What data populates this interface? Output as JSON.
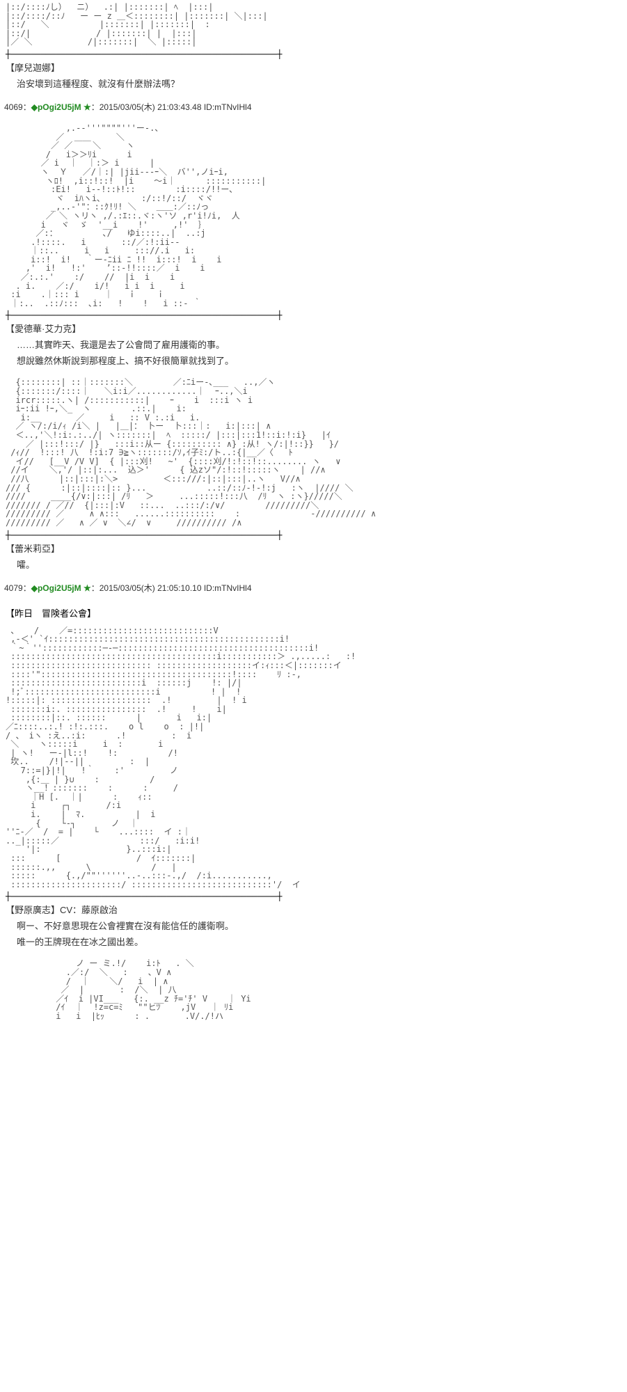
{
  "post1": {
    "ascii": "|::/::::ﾉし）  ニ）  .:| |:::::::| ﾍ  |:::|\n|::/::::/::ﾉ   ー ー z ＿＜::::::::| |:::::::| ＼|:::|\n|::/   ＼          |:::::::| |:::::::|  :\n|::/|             / |:::::::| |  |:::|\n|／ ＼           /|:::::::|  ＼ |:::::|",
    "divider": "┼─────────────────────────────────────────────────────┼",
    "characterName": "【摩兒迦娜】",
    "dialogue": "治安壞到這種程度、就沒有什麼辦法嗎？"
  },
  "post2": {
    "header": {
      "num": "4069",
      "sep": "：",
      "trip": "◆pOgi2U5jM ★",
      "meta": "：2015/03/05(木) 21:03:43.48 ID:mTNvIHl4"
    },
    "ascii": "            ,.-‐'''\"\"\"\"'''ー-.、\n          ／  ＿＿     ＼\n         ／ ／    ＼     ヽ\n        /   i＞＞ﾘi      i\n       ／ i  ｜  ｜:＞ i      |\n       ヽ  Ｙ   ／/｜:| |jii---ｰ＼  バ'',ノiｰi,\n        ヽﾛ!  ,i::!::!  |i    ～i｜      :::::::::::|\n         :Ei!   i--!::ﾄ!::        :i::::/!!ー､\n          ヾ  iﾊヽi､        :/::!/::/  ヾヾ\n         _,..-'\"：::ｸ!ﾘ! ＼    ＿＿:／::ﾉっ\n        ／ ＼ ヽリヽ ,/.:ｴ::.ヾ:ヽ'ソ ,r'i!ﾉi,  人\n       i   ヾ  ゞ  '__i    !'     ,!'  ｝\n      ／:：         ､/   ゆi::::..|  ..:j\n     .!::::.   i       ::/／:!:ii--         \n     ｜::..     i   i     ::://.i   i:\n     i::!  i!   ｀ー-ﾆii ﾆ !!  i:::!  i    i\n    ,'  i!   !:'    ’::‐!!::::／  i    i\n   ／:.:.'    :/    //  |i  i    i\n  . i.    ／:/    i/!   i i  i     i\n :i    .｜::: i     ｜   ｉ    ｉ\n ｜:..  .::ﾉ:::  ､i:   !    !   i ::- ｀",
    "divider": "┼─────────────────────────────────────────────────────┼",
    "characterName": "【愛德華·艾力克】",
    "dialogue1": "……其實昨天、我還是去了公會問了雇用護衛的事。",
    "dialogue2": "想說雖然休斯說到那程度上、搞不好很簡單就找到了。"
  },
  "post3": {
    "ascii": "  {::::::::| ::｜:::::::＼        ／:ﾆiー-､___   ..,／ヽ\n  {:::::::/::::｜   ＼i:i／............｜  ｰ..,＼i\n  ircr:::::.ヽ| /:::::::::::|    ｰ    i  :::i ヽ i\n  iｰ:ii !ｰ,＼_  ヽ        .::.|    i:\n   i:__       ／     i   :: V :.:i   i.\n  ／ ヽ/:/i/ｨ /i＼ |   |＿|： 卜ー  卜:::｜:   i:|:::| ∧\n  ＜..,'＼!:i:.:../| ヽ:::::::|  ﾍ  :::::/ |:::|:::1!::i:!:i}   |ｲ\n    ／ |:::!:::/ |}   :::i::从ー {:::::::::: ∧} :从! ヽ/:|!::}}   }/\n /ｨ//  !:::! 八  !:i:7 ∋≧ヽ:::::::/ｿ,ｲ子ﾐ:/ト..:{|__／〈   ﾄ\n  イ//   [__V /V V]  { |:::刈!   ~'  {::::刈/!:!::!::........ ヽ   ∨\n //イ    ＼,'/ |::|:...  込＞'      { 込zソ\"/:!::!:::::ヽ    | //∧\n //八      |::|:::|:＼>         ＜:::///:|::|:::|..ヽ   V//∧\n/// {      :|::|::::|:: }...            ..::/::ﾉ-!-!:j   :ヽ  |//// ＼\n////     ____{/∨:|:::| /ﾘ   ＞     ...:::::!:::八  /ﾘ  ヽ :ヽ}/////＼\n/////// / ／//  {|:::|:V   ::...  ..:::/:/∨/        /////////＼\n///////// ／     ∧ ∧:::   ......::::::::::    :              -////////// ∧\n///////// ／   ∧ ／ ∨  ＼∠/  ∨     ////////// /∧",
    "divider": "┼─────────────────────────────────────────────────────┼",
    "characterName": "【蕾米莉亞】",
    "dialogue": "嚯。"
  },
  "post4": {
    "header": {
      "num": "4079",
      "sep": "：",
      "trip": "◆pOgi2U5jM ★",
      "meta": "：2015/03/05(木) 21:05:10.10 ID:mTNvIHl4"
    },
    "sceneLabel": "【昨日　冒険者公會】",
    "ascii": " 、   /    ／=::::::::::::::::::::::::::::V\n ,-＜' `ｲ::::::::::::::::::::::::::::::::::::::::::::::i!\n ｀~｀''::::::::::::─-─::::::::::::::::::::::::::::::::::::::i!\n :::::::::::::::::::::::::::::::::::::::::i:::::::::::＞ .,.....:   :!\n :::::::::::::::::::::::::::: :::::::::::::::::::イ:ｨ:::＜|:::::::イ\n ::::'\"::::::::::::::::::::::::::::::::::::::!::::    ﾘ :-,\n ::::::::::::::::::::::::::i  ::::::j    !: |/|\n !;ﾞ::::::::::::::::::::::::::i          ! |  !\n!:::::|: ::::::::::::::::::::  .!         |  ! i\n :::::::i:. ::::::::::::::::  .!     !    i|\n ::::::::|::. ::::::      |       i   i:|\n／ﾆ::::..:.! :!:.:::.    o l    o  : |!|\n/ 、 iヽ :え..:i:      .!         :  i\n ＼    ヽ:::::i     i  :       i\n | ヽ!   ー-|l::!    !:          /!\n 坎..    /!|--||         :  |\n   7::=|}|!|   !｀    :'         ノ\n    ,{:＿ | }∪    :          /\n    ヽ__！:::::::    :      :     /\n     ｜H [.  ｜|      :    ｨ::\n     i     ┌┐       /:i\n     i.    |  ﾏ.          |  i\n      {    └‐┐       ノ  ｜\n''ﾆ-／  /  = |    └    ...::::  イ :｜\n.._|:::::／                :::/   :i:i!\n    '|:                 }..:::i:|\n :::      [               /  ｲ:::::::|\n ::::::.,,      \\            /   |\n :::::      {.,/\"\"''''''..-..:::-.,/  /:i...........,\n ::::::::::::::::::::::/ ::::::::::::::::::::::::::::'/  イ",
    "divider": "┼─────────────────────────────────────────────────────┼",
    "characterName": "【野原廣志】CV：藤原啟治",
    "dialogue1": "啊ー、不好意思現在公會裡實在沒有能信任的護衛啊。",
    "dialogue2": "唯一的王牌現在在冰之國出差。"
  },
  "post5": {
    "ascii": "              ノ ー ミ.!/    i:ﾄ   . ＼\n            .／:/  ＼   :    、V ∧\n            /  ｜    ＼/   i  | ∧\n           ／  |       :  /＼  | 八\n          ／ｲ  i |VI___   {:. __z ﾁ='ﾁ' V    ｜ Yi\n          /ｲ  ｜  !z=c=ﾐ   \"\"ヒﾂ    ,jV   ｜ ﾘi\n          i   i  |ﾋｯ      : .       .V/./!ハ"
  }
}
